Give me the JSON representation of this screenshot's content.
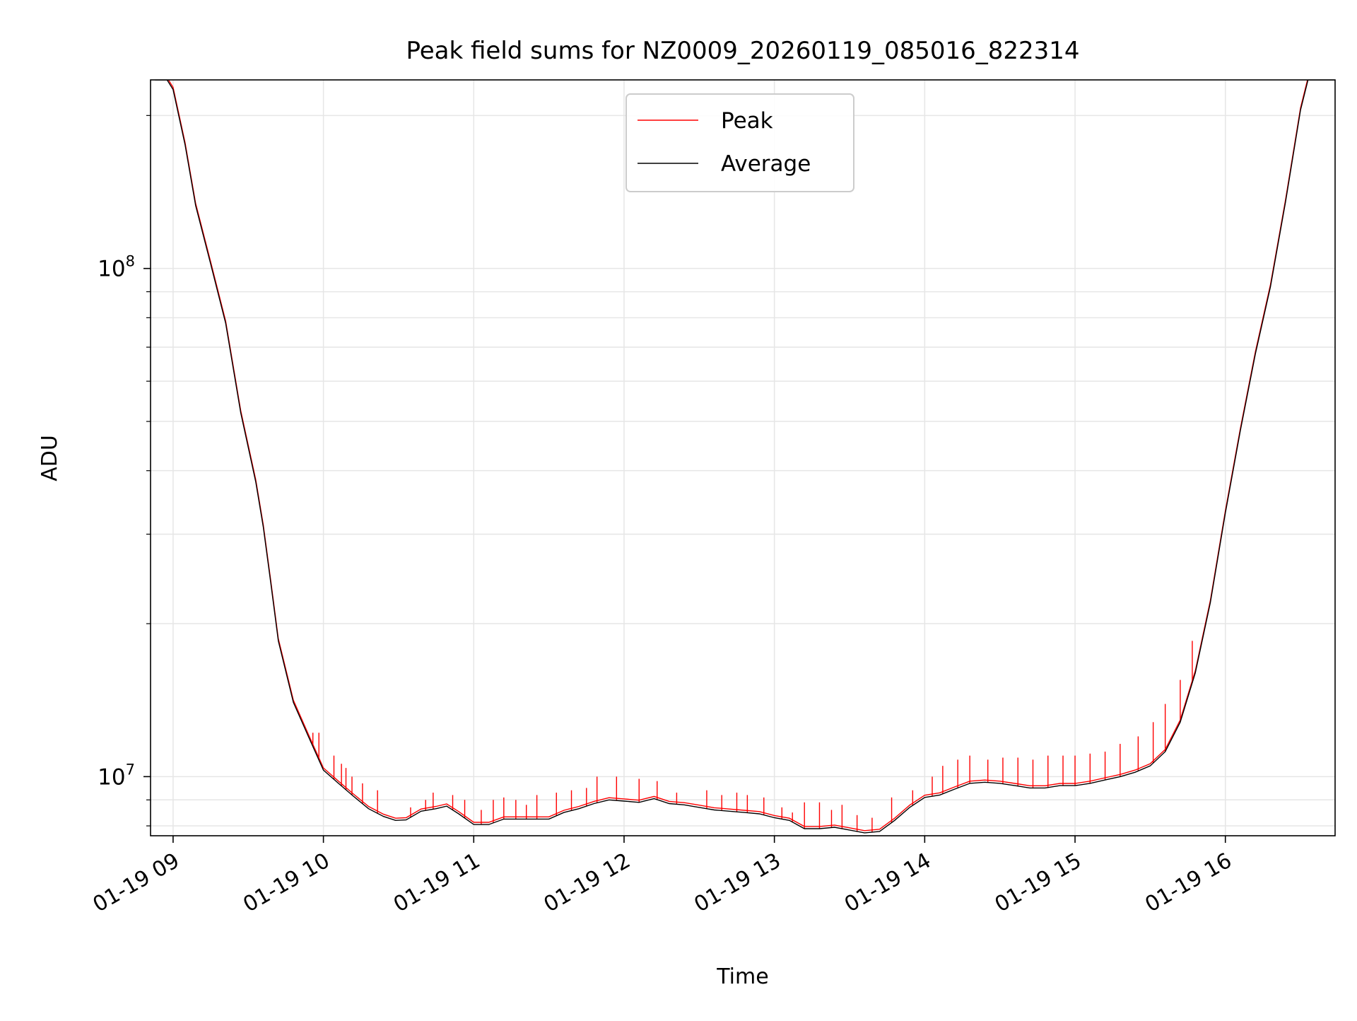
{
  "chart_data": {
    "type": "line",
    "title": "Peak field sums for NZ0009_20260119_085016_822314",
    "xlabel": "Time",
    "ylabel": "ADU",
    "yscale": "log",
    "ylim": [
      7650000,
      235000000
    ],
    "xlim_hours": [
      8.85,
      16.73
    ],
    "x_unit": "hour of 01-19",
    "x_ticks": [
      {
        "value": 9,
        "label": "01-19 09"
      },
      {
        "value": 10,
        "label": "01-19 10"
      },
      {
        "value": 11,
        "label": "01-19 11"
      },
      {
        "value": 12,
        "label": "01-19 12"
      },
      {
        "value": 13,
        "label": "01-19 13"
      },
      {
        "value": 14,
        "label": "01-19 14"
      },
      {
        "value": 15,
        "label": "01-19 15"
      },
      {
        "value": 16,
        "label": "01-19 16"
      }
    ],
    "y_major_ticks": [
      {
        "value": 10000000,
        "base": "10",
        "exp": "7"
      },
      {
        "value": 100000000,
        "base": "10",
        "exp": "8"
      }
    ],
    "y_minor_ticks": [
      8000000,
      9000000,
      20000000,
      30000000,
      40000000,
      50000000,
      60000000,
      70000000,
      80000000,
      90000000,
      200000000
    ],
    "grid": true,
    "legend": {
      "position": "top-center",
      "entries": [
        {
          "label": "Peak",
          "color": "#ff0000"
        },
        {
          "label": "Average",
          "color": "#000000"
        }
      ]
    },
    "series": [
      {
        "name": "Average",
        "color": "#000000",
        "points": [
          [
            8.88,
            235000000
          ],
          [
            8.96,
            235000000
          ],
          [
            9.0,
            225000000
          ],
          [
            9.08,
            175000000
          ],
          [
            9.15,
            133000000
          ],
          [
            9.25,
            102000000
          ],
          [
            9.35,
            78000000
          ],
          [
            9.45,
            52000000
          ],
          [
            9.55,
            38000000
          ],
          [
            9.6,
            31000000
          ],
          [
            9.65,
            24000000
          ],
          [
            9.7,
            18500000
          ],
          [
            9.8,
            14000000
          ],
          [
            9.9,
            12000000
          ],
          [
            10.0,
            10300000
          ],
          [
            10.1,
            9700000
          ],
          [
            10.2,
            9150000
          ],
          [
            10.3,
            8650000
          ],
          [
            10.4,
            8350000
          ],
          [
            10.48,
            8200000
          ],
          [
            10.55,
            8220000
          ],
          [
            10.65,
            8550000
          ],
          [
            10.75,
            8650000
          ],
          [
            10.82,
            8750000
          ],
          [
            10.9,
            8450000
          ],
          [
            11.0,
            8050000
          ],
          [
            11.1,
            8050000
          ],
          [
            11.2,
            8250000
          ],
          [
            11.35,
            8250000
          ],
          [
            11.5,
            8250000
          ],
          [
            11.6,
            8500000
          ],
          [
            11.7,
            8650000
          ],
          [
            11.8,
            8850000
          ],
          [
            11.9,
            9000000
          ],
          [
            12.0,
            8950000
          ],
          [
            12.1,
            8900000
          ],
          [
            12.2,
            9050000
          ],
          [
            12.3,
            8850000
          ],
          [
            12.4,
            8800000
          ],
          [
            12.5,
            8700000
          ],
          [
            12.6,
            8600000
          ],
          [
            12.7,
            8550000
          ],
          [
            12.8,
            8500000
          ],
          [
            12.9,
            8450000
          ],
          [
            13.0,
            8300000
          ],
          [
            13.1,
            8200000
          ],
          [
            13.2,
            7900000
          ],
          [
            13.3,
            7900000
          ],
          [
            13.4,
            7950000
          ],
          [
            13.5,
            7850000
          ],
          [
            13.6,
            7750000
          ],
          [
            13.7,
            7800000
          ],
          [
            13.8,
            8200000
          ],
          [
            13.9,
            8700000
          ],
          [
            14.0,
            9100000
          ],
          [
            14.1,
            9200000
          ],
          [
            14.2,
            9450000
          ],
          [
            14.3,
            9700000
          ],
          [
            14.4,
            9750000
          ],
          [
            14.5,
            9700000
          ],
          [
            14.6,
            9600000
          ],
          [
            14.7,
            9500000
          ],
          [
            14.8,
            9500000
          ],
          [
            14.9,
            9600000
          ],
          [
            15.0,
            9600000
          ],
          [
            15.1,
            9700000
          ],
          [
            15.2,
            9850000
          ],
          [
            15.3,
            10000000
          ],
          [
            15.4,
            10200000
          ],
          [
            15.5,
            10500000
          ],
          [
            15.6,
            11200000
          ],
          [
            15.7,
            12800000
          ],
          [
            15.8,
            16000000
          ],
          [
            15.9,
            22000000
          ],
          [
            16.0,
            33000000
          ],
          [
            16.1,
            48000000
          ],
          [
            16.2,
            68000000
          ],
          [
            16.3,
            92000000
          ],
          [
            16.4,
            135000000
          ],
          [
            16.5,
            205000000
          ],
          [
            16.55,
            235000000
          ],
          [
            16.73,
            235000000
          ]
        ]
      },
      {
        "name": "Peak",
        "color": "#ff0000",
        "spikes": [
          [
            9.93,
            12200000
          ],
          [
            9.97,
            12200000
          ],
          [
            10.07,
            11000000
          ],
          [
            10.12,
            10600000
          ],
          [
            10.15,
            10400000
          ],
          [
            10.19,
            10000000
          ],
          [
            10.26,
            9700000
          ],
          [
            10.36,
            9400000
          ],
          [
            10.58,
            8700000
          ],
          [
            10.68,
            9000000
          ],
          [
            10.73,
            9300000
          ],
          [
            10.86,
            9200000
          ],
          [
            10.94,
            9000000
          ],
          [
            11.05,
            8600000
          ],
          [
            11.13,
            9000000
          ],
          [
            11.2,
            9100000
          ],
          [
            11.28,
            9000000
          ],
          [
            11.35,
            8800000
          ],
          [
            11.42,
            9200000
          ],
          [
            11.55,
            9300000
          ],
          [
            11.65,
            9400000
          ],
          [
            11.75,
            9500000
          ],
          [
            11.82,
            10000000
          ],
          [
            11.95,
            10000000
          ],
          [
            12.1,
            9900000
          ],
          [
            12.22,
            9800000
          ],
          [
            12.35,
            9300000
          ],
          [
            12.55,
            9400000
          ],
          [
            12.65,
            9200000
          ],
          [
            12.75,
            9300000
          ],
          [
            12.82,
            9200000
          ],
          [
            12.93,
            9100000
          ],
          [
            13.05,
            8700000
          ],
          [
            13.12,
            8500000
          ],
          [
            13.2,
            8900000
          ],
          [
            13.3,
            8900000
          ],
          [
            13.38,
            8600000
          ],
          [
            13.45,
            8800000
          ],
          [
            13.55,
            8400000
          ],
          [
            13.65,
            8300000
          ],
          [
            13.78,
            9100000
          ],
          [
            13.92,
            9400000
          ],
          [
            14.05,
            10000000
          ],
          [
            14.12,
            10500000
          ],
          [
            14.22,
            10800000
          ],
          [
            14.3,
            11000000
          ],
          [
            14.42,
            10800000
          ],
          [
            14.52,
            10900000
          ],
          [
            14.62,
            10900000
          ],
          [
            14.72,
            10800000
          ],
          [
            14.82,
            11000000
          ],
          [
            14.92,
            11000000
          ],
          [
            15.0,
            11000000
          ],
          [
            15.1,
            11100000
          ],
          [
            15.2,
            11200000
          ],
          [
            15.3,
            11600000
          ],
          [
            15.42,
            12000000
          ],
          [
            15.52,
            12800000
          ],
          [
            15.6,
            13900000
          ],
          [
            15.7,
            15500000
          ],
          [
            15.78,
            18500000
          ]
        ]
      }
    ]
  }
}
